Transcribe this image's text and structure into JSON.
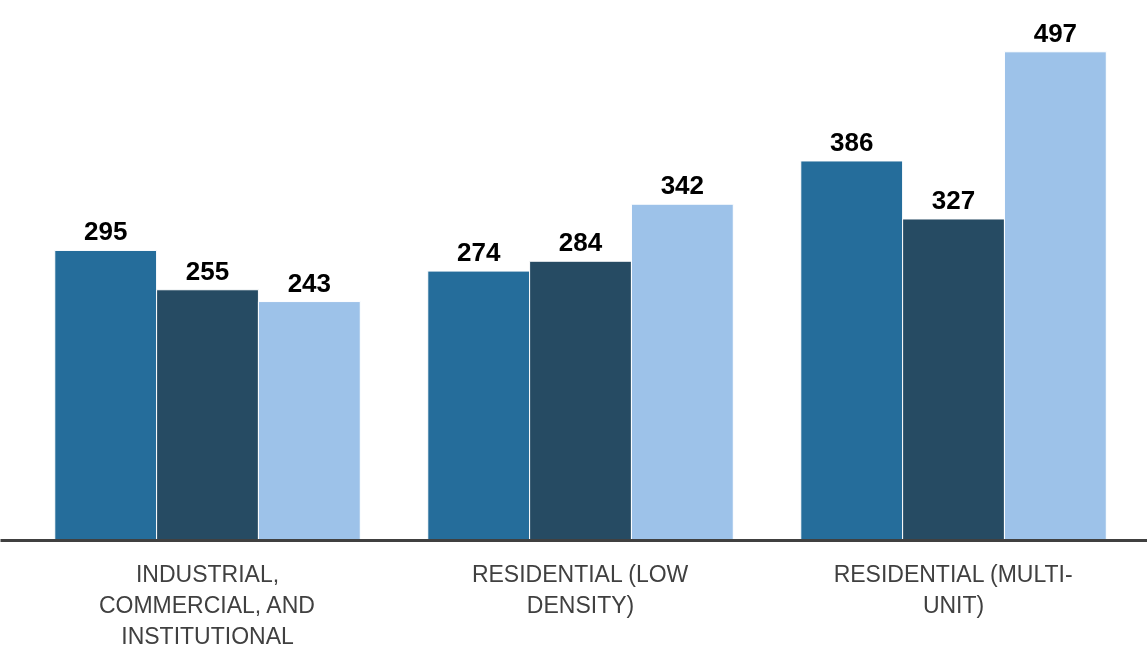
{
  "chart_data": {
    "type": "bar",
    "categories": [
      "INDUSTRIAL, COMMERCIAL, AND INSTITUTIONAL",
      "RESIDENTIAL (LOW DENSITY)",
      "RESIDENTIAL (MULTI-UNIT)"
    ],
    "series": [
      {
        "color": "#256d9b",
        "values": [
          295,
          274,
          386
        ]
      },
      {
        "color": "#264b63",
        "values": [
          255,
          284,
          327
        ]
      },
      {
        "color": "#9dc2e9",
        "values": [
          243,
          342,
          497
        ]
      }
    ],
    "data_labels": true,
    "grid": false,
    "tick_labels": "x"
  }
}
